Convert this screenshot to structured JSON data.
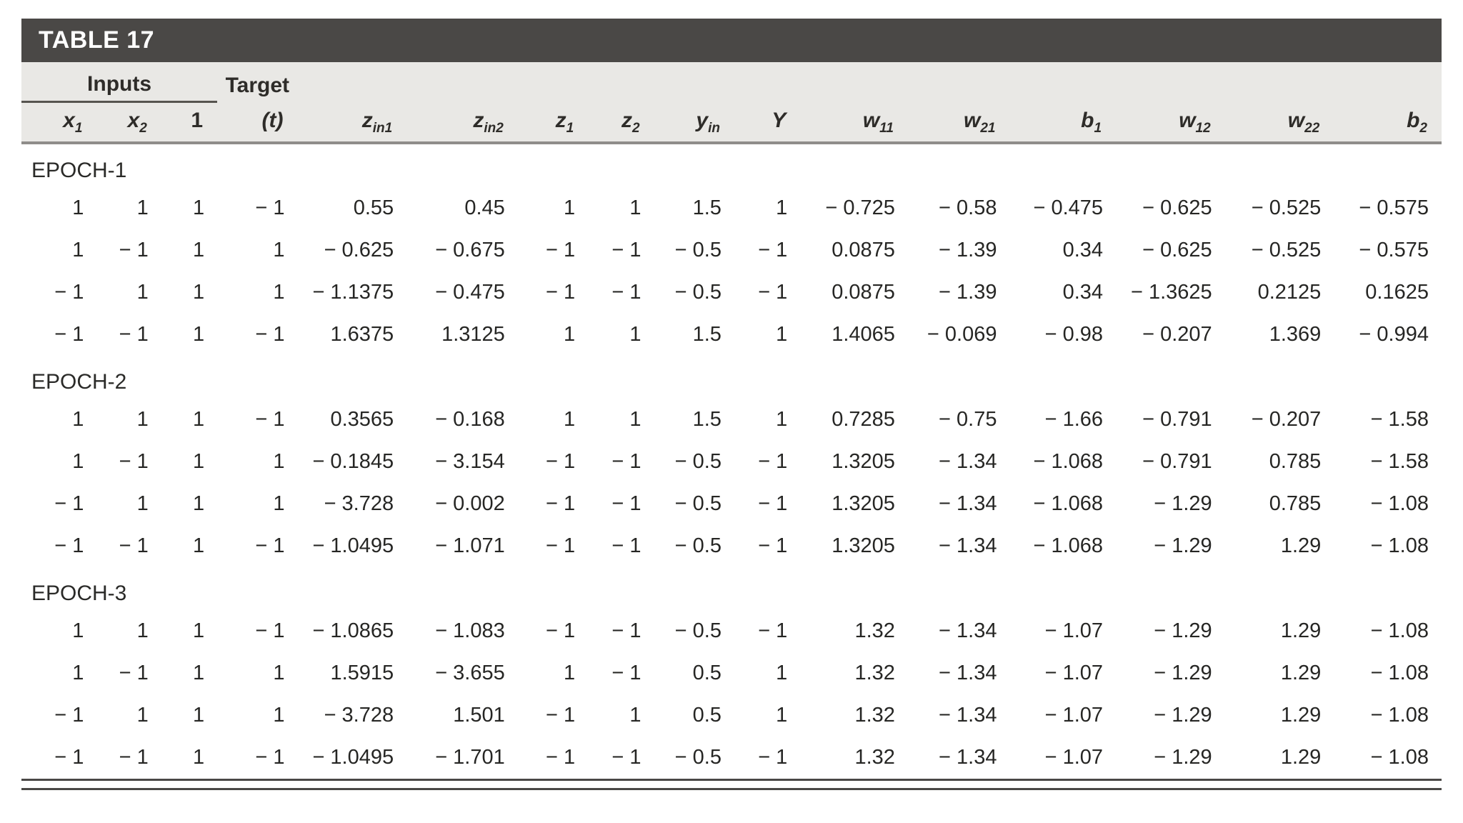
{
  "table": {
    "title": "TABLE 17",
    "groups": [
      {
        "label": "Inputs",
        "span": 3
      },
      {
        "label": "Target",
        "span": 1
      }
    ],
    "columns": [
      {
        "base": "x",
        "sub": "1",
        "italic": true
      },
      {
        "base": "x",
        "sub": "2",
        "italic": true
      },
      {
        "base": "1",
        "sub": "",
        "italic": false
      },
      {
        "base": "(t)",
        "sub": "",
        "italic": true
      },
      {
        "base": "z",
        "sub": "in1",
        "italic": true
      },
      {
        "base": "z",
        "sub": "in2",
        "italic": true
      },
      {
        "base": "z",
        "sub": "1",
        "italic": true
      },
      {
        "base": "z",
        "sub": "2",
        "italic": true
      },
      {
        "base": "y",
        "sub": "in",
        "italic": true
      },
      {
        "base": "Y",
        "sub": "",
        "italic": true
      },
      {
        "base": "w",
        "sub": "11",
        "italic": true
      },
      {
        "base": "w",
        "sub": "21",
        "italic": true
      },
      {
        "base": "b",
        "sub": "1",
        "italic": true
      },
      {
        "base": "w",
        "sub": "12",
        "italic": true
      },
      {
        "base": "w",
        "sub": "22",
        "italic": true
      },
      {
        "base": "b",
        "sub": "2",
        "italic": true
      }
    ],
    "epochs": [
      {
        "label": "EPOCH-1",
        "rows": [
          [
            "1",
            "1",
            "1",
            "− 1",
            "0.55",
            "0.45",
            "1",
            "1",
            "1.5",
            "1",
            "− 0.725",
            "− 0.58",
            "− 0.475",
            "− 0.625",
            "− 0.525",
            "− 0.575"
          ],
          [
            "1",
            "− 1",
            "1",
            "1",
            "− 0.625",
            "− 0.675",
            "− 1",
            "− 1",
            "− 0.5",
            "− 1",
            "0.0875",
            "− 1.39",
            "0.34",
            "− 0.625",
            "− 0.525",
            "− 0.575"
          ],
          [
            "− 1",
            "1",
            "1",
            "1",
            "− 1.1375",
            "− 0.475",
            "− 1",
            "− 1",
            "− 0.5",
            "− 1",
            "0.0875",
            "− 1.39",
            "0.34",
            "− 1.3625",
            "0.2125",
            "0.1625"
          ],
          [
            "− 1",
            "− 1",
            "1",
            "− 1",
            "1.6375",
            "1.3125",
            "1",
            "1",
            "1.5",
            "1",
            "1.4065",
            "− 0.069",
            "− 0.98",
            "− 0.207",
            "1.369",
            "− 0.994"
          ]
        ]
      },
      {
        "label": "EPOCH-2",
        "rows": [
          [
            "1",
            "1",
            "1",
            "− 1",
            "0.3565",
            "− 0.168",
            "1",
            "1",
            "1.5",
            "1",
            "0.7285",
            "− 0.75",
            "− 1.66",
            "− 0.791",
            "− 0.207",
            "− 1.58"
          ],
          [
            "1",
            "− 1",
            "1",
            "1",
            "− 0.1845",
            "− 3.154",
            "− 1",
            "− 1",
            "− 0.5",
            "− 1",
            "1.3205",
            "− 1.34",
            "− 1.068",
            "− 0.791",
            "0.785",
            "− 1.58"
          ],
          [
            "− 1",
            "1",
            "1",
            "1",
            "− 3.728",
            "− 0.002",
            "− 1",
            "− 1",
            "− 0.5",
            "− 1",
            "1.3205",
            "− 1.34",
            "− 1.068",
            "− 1.29",
            "0.785",
            "− 1.08"
          ],
          [
            "− 1",
            "− 1",
            "1",
            "− 1",
            "− 1.0495",
            "− 1.071",
            "− 1",
            "− 1",
            "− 0.5",
            "− 1",
            "1.3205",
            "− 1.34",
            "− 1.068",
            "− 1.29",
            "1.29",
            "− 1.08"
          ]
        ]
      },
      {
        "label": "EPOCH-3",
        "rows": [
          [
            "1",
            "1",
            "1",
            "− 1",
            "− 1.0865",
            "− 1.083",
            "− 1",
            "− 1",
            "− 0.5",
            "− 1",
            "1.32",
            "− 1.34",
            "− 1.07",
            "− 1.29",
            "1.29",
            "− 1.08"
          ],
          [
            "1",
            "− 1",
            "1",
            "1",
            "1.5915",
            "− 3.655",
            "1",
            "− 1",
            "0.5",
            "1",
            "1.32",
            "− 1.34",
            "− 1.07",
            "− 1.29",
            "1.29",
            "− 1.08"
          ],
          [
            "− 1",
            "1",
            "1",
            "1",
            "− 3.728",
            "1.501",
            "− 1",
            "1",
            "0.5",
            "1",
            "1.32",
            "− 1.34",
            "− 1.07",
            "− 1.29",
            "1.29",
            "− 1.08"
          ],
          [
            "− 1",
            "− 1",
            "1",
            "− 1",
            "− 1.0495",
            "− 1.701",
            "− 1",
            "− 1",
            "− 0.5",
            "− 1",
            "1.32",
            "− 1.34",
            "− 1.07",
            "− 1.29",
            "1.29",
            "− 1.08"
          ]
        ]
      }
    ]
  }
}
